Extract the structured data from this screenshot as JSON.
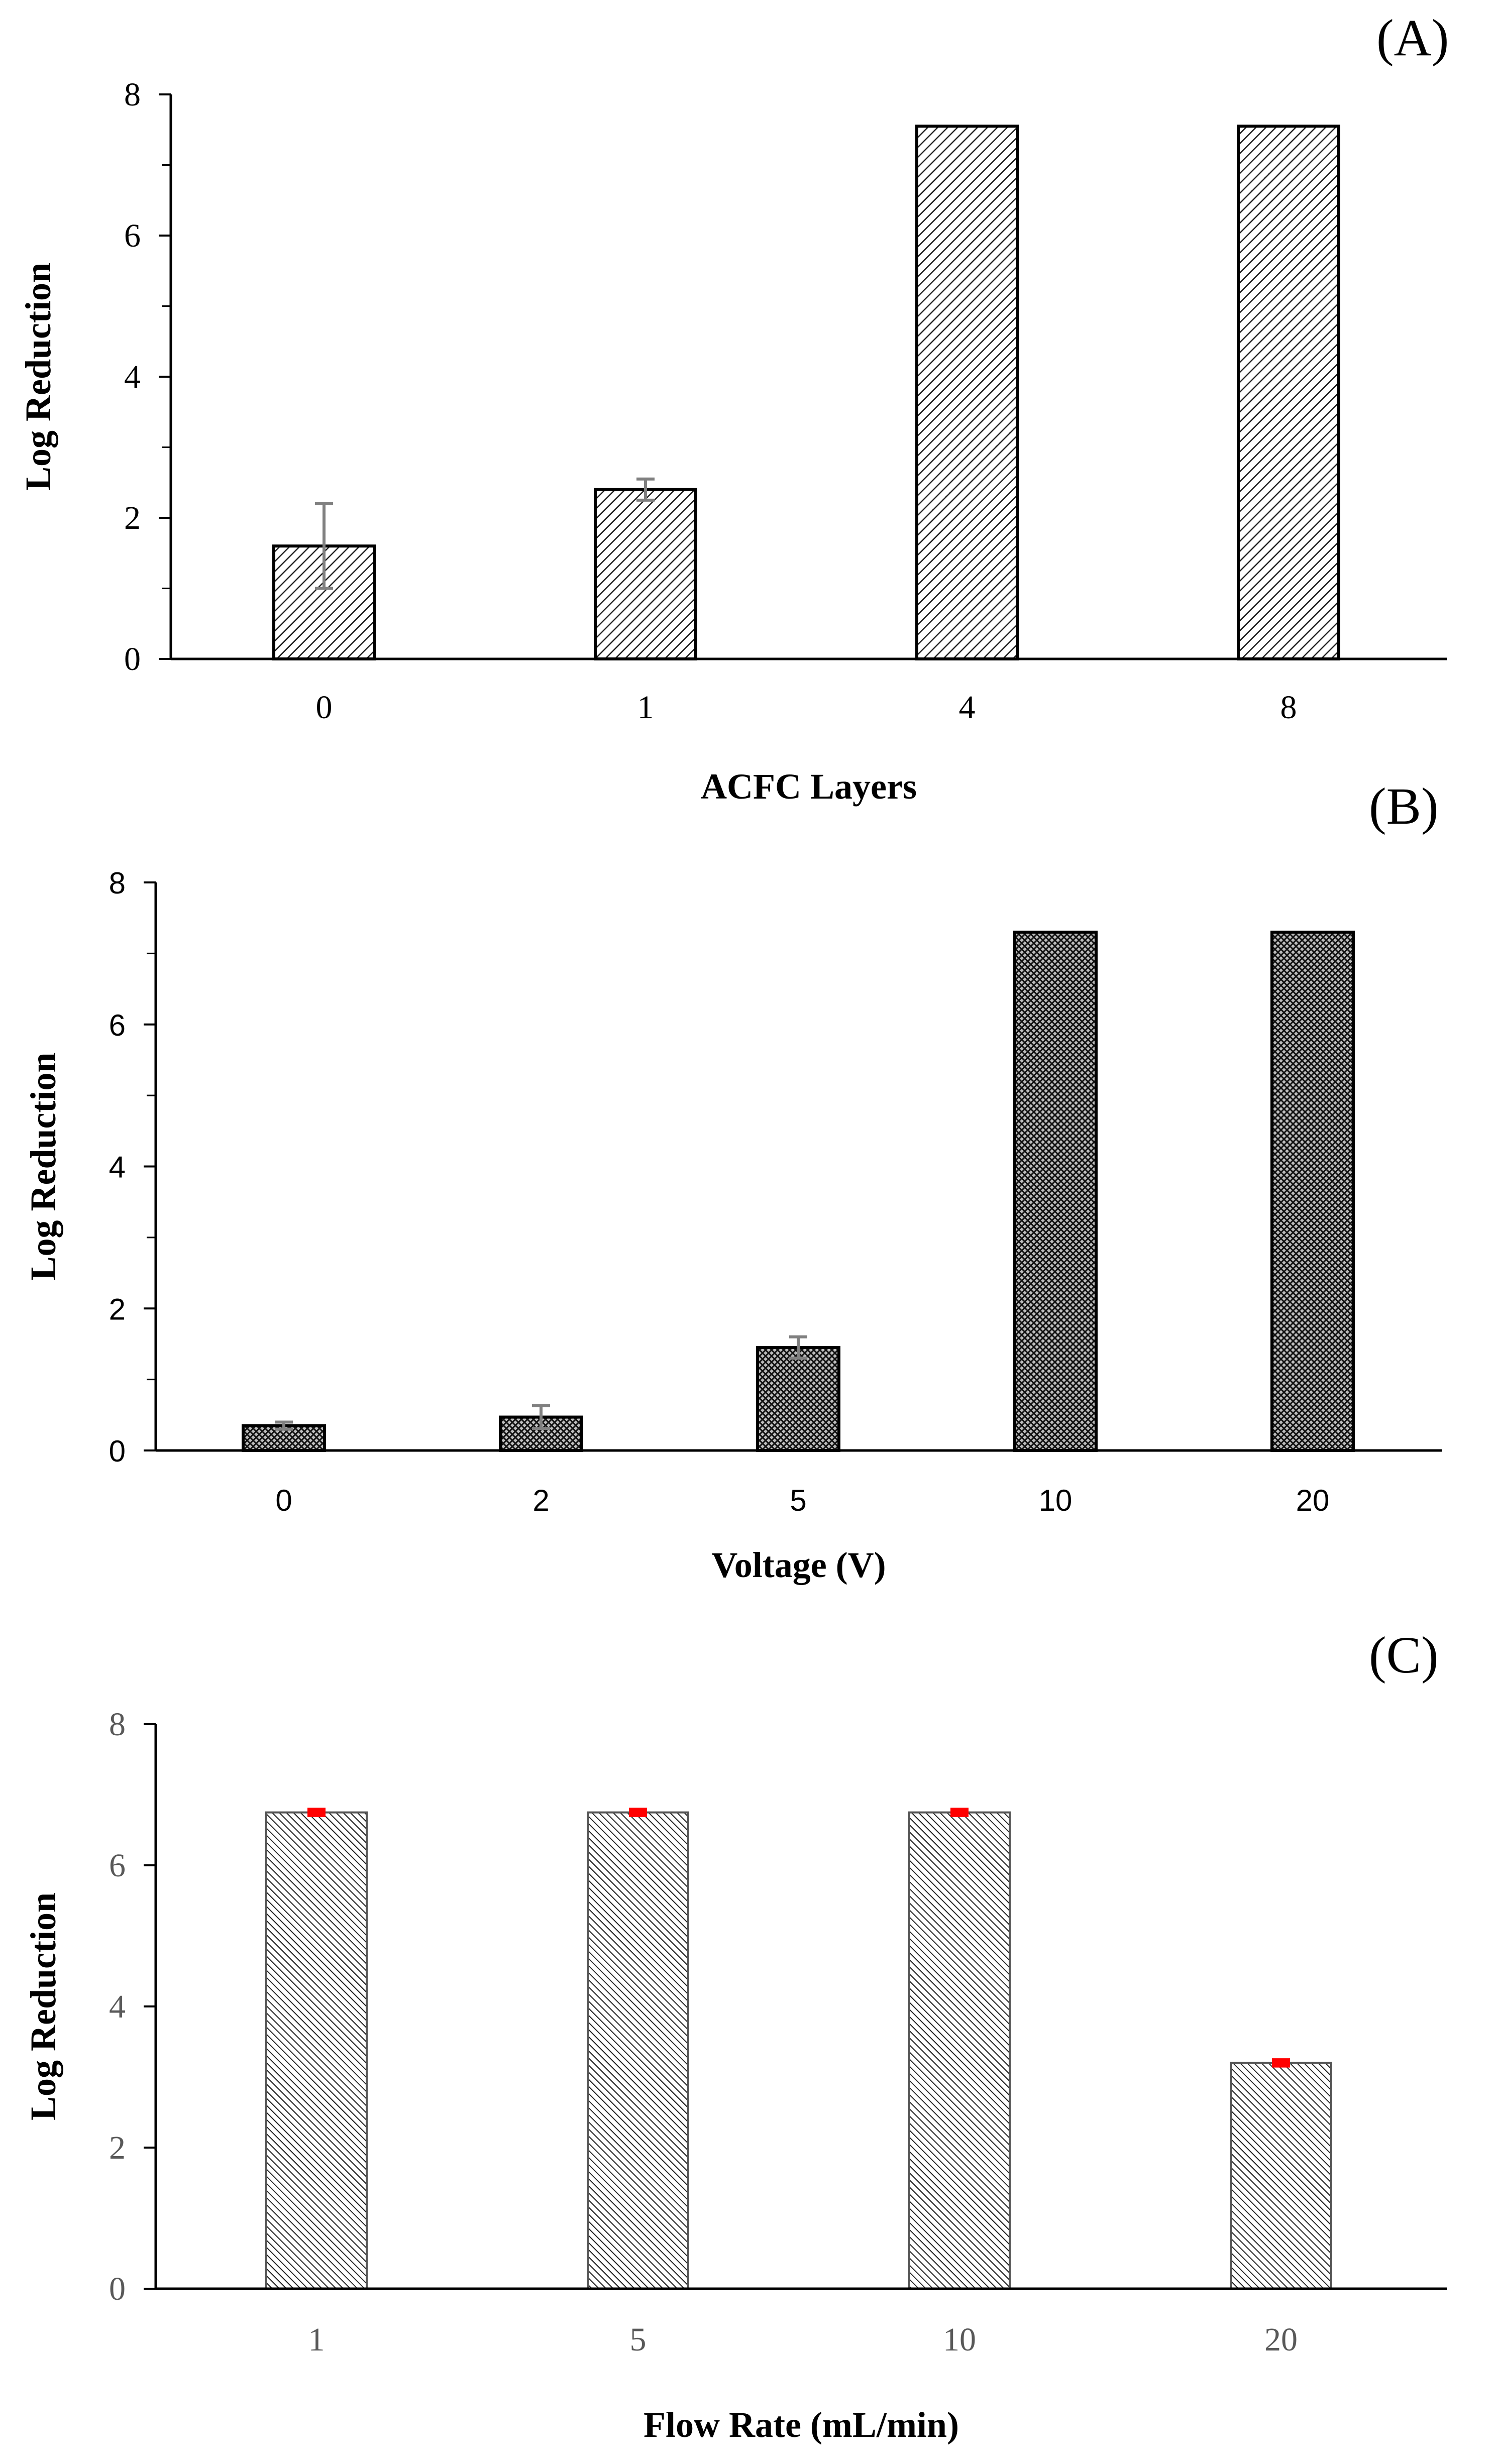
{
  "chart_data": [
    {
      "type": "bar",
      "panel_label": "(A)",
      "categories": [
        "0",
        "1",
        "4",
        "8"
      ],
      "values": [
        1.6,
        2.4,
        7.55,
        7.55
      ],
      "errors": [
        0.6,
        0.15,
        0,
        0
      ],
      "xlabel": "ACFC Layers",
      "ylabel": "Log Reduction",
      "ylim": [
        0,
        8
      ],
      "yticks": [
        "0",
        "2",
        "4",
        "6",
        "8"
      ],
      "fill_pattern": "diagonal-hatch",
      "error_bar_color": "#808080",
      "grid": false
    },
    {
      "type": "bar",
      "panel_label": "(B)",
      "categories": [
        "0",
        "2",
        "5",
        "10",
        "20"
      ],
      "values": [
        0.35,
        0.47,
        1.45,
        7.3,
        7.3
      ],
      "errors": [
        0.05,
        0.16,
        0.15,
        0,
        0
      ],
      "xlabel": "Voltage (V)",
      "ylabel": "Log Reduction",
      "ylim": [
        0,
        8
      ],
      "yticks": [
        "0",
        "2",
        "4",
        "6",
        "8"
      ],
      "fill_pattern": "dense-crosshatch",
      "error_bar_color": "#808080",
      "grid": false
    },
    {
      "type": "bar",
      "panel_label": "(C)",
      "categories": [
        "1",
        "5",
        "10",
        "20"
      ],
      "values": [
        6.75,
        6.75,
        6.75,
        3.2
      ],
      "errors": [
        0.03,
        0.03,
        0.03,
        0.03
      ],
      "xlabel": "Flow Rate (mL/min)",
      "ylabel": "Log Reduction",
      "ylim": [
        0,
        8
      ],
      "yticks": [
        "0",
        "2",
        "4",
        "6",
        "8"
      ],
      "fill_pattern": "fine-diagonal-hatch",
      "error_bar_color": "#ff0000",
      "grid": false
    }
  ]
}
